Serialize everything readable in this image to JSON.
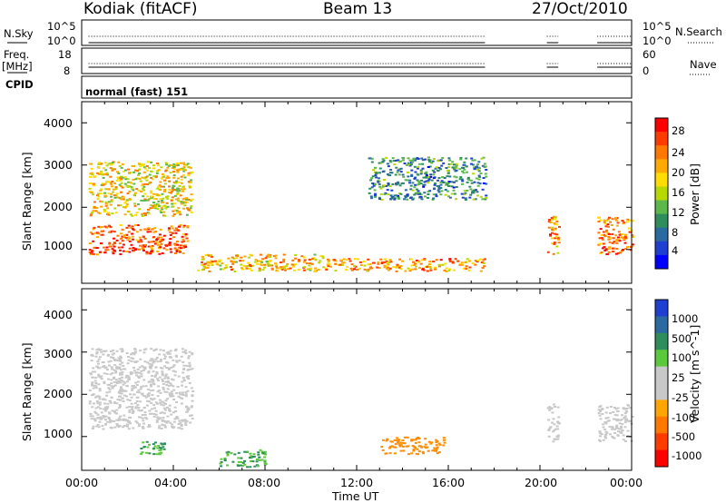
{
  "header": {
    "station": "Kodiak (fitACF)",
    "beam": "Beam 13",
    "date": "27/Oct/2010"
  },
  "strip": {
    "nsky_label": "N.Sky",
    "nsky_ticks": [
      "10^5",
      "10^0"
    ],
    "nsearch_label": "N.Search",
    "freq_label": "Freq.",
    "freq_unit": "[MHz]",
    "freq_ticks": [
      "18",
      "8"
    ],
    "nave_label": "Nave",
    "nave_ticks": [
      "60",
      "0"
    ],
    "cpid_label": "CPID",
    "cpid_value": "normal (fast) 151"
  },
  "panels": {
    "ylabel": "Slant Range [km]",
    "yticks": [
      "4000",
      "3000",
      "2000",
      "1000"
    ],
    "xticks": [
      "00:00",
      "04:00",
      "08:00",
      "12:00",
      "16:00",
      "20:00",
      "00:00"
    ],
    "xlabel": "Time UT"
  },
  "power_colorbar": {
    "label": "Power [dB]",
    "ticks": [
      "28",
      "24",
      "20",
      "16",
      "12",
      "8",
      "4"
    ],
    "colors": [
      "#ff0000",
      "#ff3c00",
      "#ff7800",
      "#ffaa00",
      "#ffdd00",
      "#b7d800",
      "#5cb84a",
      "#2f8c5c",
      "#2a6aa0",
      "#1f3fd0",
      "#0000ff"
    ]
  },
  "velocity_colorbar": {
    "label": "Velocity [m s^-1]",
    "ticks": [
      "1000",
      "500",
      "100",
      "25",
      "-25",
      "-100",
      "-500",
      "-1000"
    ],
    "colors": [
      "#1f3fd0",
      "#2a6aa0",
      "#2f8c5c",
      "#5cc83c",
      "#c8c8c8",
      "#c8c8c8",
      "#ffa500",
      "#ff7800",
      "#ff3c00",
      "#ff0000"
    ]
  },
  "chart_data": {
    "type": "heatmap",
    "title": "Kodiak (fitACF) Beam 13 27/Oct/2010",
    "xlabel": "Time UT",
    "ylabel": "Slant Range [km]",
    "x_range": [
      "00:00",
      "24:00"
    ],
    "y_range": [
      200,
      4500
    ],
    "grid": false,
    "panels": [
      {
        "name": "Power [dB]",
        "colorbar_range": [
          0,
          30
        ],
        "regions": [
          {
            "t_start": 0.3,
            "t_end": 4.6,
            "range_lo": 900,
            "range_hi": 1600,
            "level": 26
          },
          {
            "t_start": 0.3,
            "t_end": 4.8,
            "range_lo": 1800,
            "range_hi": 3100,
            "level": 18
          },
          {
            "t_start": 5.0,
            "t_end": 10.5,
            "range_lo": 500,
            "range_hi": 900,
            "level": 20
          },
          {
            "t_start": 10.5,
            "t_end": 17.6,
            "range_lo": 500,
            "range_hi": 800,
            "level": 22
          },
          {
            "t_start": 12.5,
            "t_end": 17.6,
            "range_lo": 2200,
            "range_hi": 3200,
            "level": 8
          },
          {
            "t_start": 20.3,
            "t_end": 20.8,
            "range_lo": 900,
            "range_hi": 1800,
            "level": 22
          },
          {
            "t_start": 22.5,
            "t_end": 24.0,
            "range_lo": 900,
            "range_hi": 1800,
            "level": 24
          }
        ]
      },
      {
        "name": "Velocity [m s^-1]",
        "colorbar_range": [
          -1000,
          1000
        ],
        "regions": [
          {
            "t_start": 0.3,
            "t_end": 4.8,
            "range_lo": 1200,
            "range_hi": 1800,
            "level": 0
          },
          {
            "t_start": 0.3,
            "t_end": 4.8,
            "range_lo": 1800,
            "range_hi": 3100,
            "level": 0
          },
          {
            "t_start": 2.5,
            "t_end": 3.8,
            "range_lo": 600,
            "range_hi": 900,
            "level": 60
          },
          {
            "t_start": 6.0,
            "t_end": 8.0,
            "range_lo": 300,
            "range_hi": 700,
            "level": 60
          },
          {
            "t_start": 13.0,
            "t_end": 15.8,
            "range_lo": 600,
            "range_hi": 1000,
            "level": -300
          },
          {
            "t_start": 20.3,
            "t_end": 20.8,
            "range_lo": 900,
            "range_hi": 1800,
            "level": 0
          },
          {
            "t_start": 22.5,
            "t_end": 24.0,
            "range_lo": 900,
            "range_hi": 1800,
            "level": 0
          }
        ]
      }
    ]
  }
}
